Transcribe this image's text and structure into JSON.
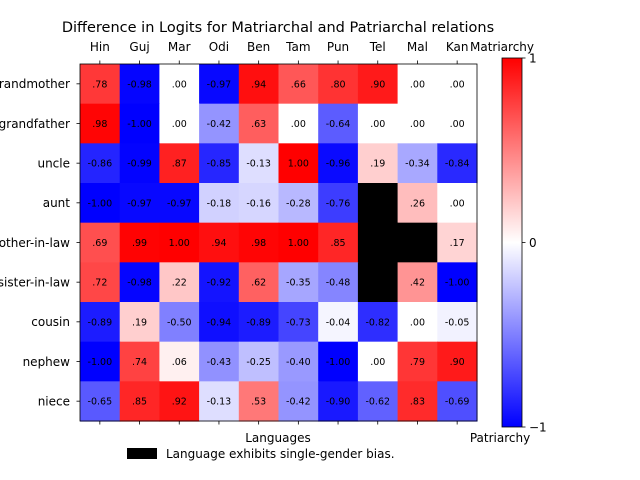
{
  "chart_data": {
    "type": "heatmap",
    "title": "Difference in Logits for Matriarchal and Patriarchal relations",
    "xlabel": "Languages",
    "ylabel": "",
    "columns": [
      "Hin",
      "Guj",
      "Mar",
      "Odi",
      "Ben",
      "Tam",
      "Pun",
      "Tel",
      "Mal",
      "Kan"
    ],
    "rows": [
      "grandmother",
      "grandfather",
      "uncle",
      "aunt",
      "mother-in-law",
      "sister-in-law",
      "cousin",
      "nephew",
      "niece"
    ],
    "values": [
      [
        0.78,
        -0.98,
        0.0,
        -0.97,
        0.94,
        0.66,
        0.8,
        0.9,
        0.0,
        0.0
      ],
      [
        0.98,
        -1.0,
        0.0,
        -0.42,
        0.63,
        0.0,
        -0.64,
        0.0,
        0.0,
        0.0
      ],
      [
        -0.86,
        -0.99,
        0.87,
        -0.85,
        -0.13,
        1.0,
        -0.96,
        0.19,
        -0.34,
        -0.84
      ],
      [
        -1.0,
        -0.97,
        -0.97,
        -0.18,
        -0.16,
        -0.28,
        -0.76,
        null,
        0.26,
        0.0
      ],
      [
        0.69,
        0.99,
        1.0,
        0.94,
        0.98,
        1.0,
        0.85,
        null,
        null,
        0.17
      ],
      [
        0.72,
        -0.98,
        0.22,
        -0.92,
        0.62,
        -0.35,
        -0.48,
        null,
        0.42,
        -1.0
      ],
      [
        -0.89,
        0.19,
        -0.5,
        -0.94,
        -0.89,
        -0.73,
        -0.04,
        -0.82,
        0.0,
        -0.05
      ],
      [
        -1.0,
        0.74,
        0.06,
        -0.43,
        -0.25,
        -0.4,
        -1.0,
        0.0,
        0.79,
        0.9
      ],
      [
        -0.65,
        0.85,
        0.92,
        -0.13,
        0.53,
        -0.42,
        -0.9,
        -0.62,
        0.83,
        -0.69
      ]
    ],
    "cell_labels": [
      [
        ".78",
        "-0.98",
        ".00",
        "-0.97",
        ".94",
        ".66",
        ".80",
        ".90",
        ".00",
        ".00"
      ],
      [
        ".98",
        "-1.00",
        ".00",
        "-0.42",
        ".63",
        ".00",
        "-0.64",
        ".00",
        ".00",
        ".00"
      ],
      [
        "-0.86",
        "-0.99",
        ".87",
        "-0.85",
        "-0.13",
        "1.00",
        "-0.96",
        ".19",
        "-0.34",
        "-0.84"
      ],
      [
        "-1.00",
        "-0.97",
        "-0.97",
        "-0.18",
        "-0.16",
        "-0.28",
        "-0.76",
        "",
        ".26",
        ".00"
      ],
      [
        ".69",
        ".99",
        "1.00",
        ".94",
        ".98",
        "1.00",
        ".85",
        "",
        "",
        ".17"
      ],
      [
        ".72",
        "-0.98",
        ".22",
        "-0.92",
        ".62",
        "-0.35",
        "-0.48",
        "",
        ".42",
        "-1.00"
      ],
      [
        "-0.89",
        ".19",
        "-0.50",
        "-0.94",
        "-0.89",
        "-0.73",
        "-0.04",
        "-0.82",
        ".00",
        "-0.05"
      ],
      [
        "-1.00",
        ".74",
        ".06",
        "-0.43",
        "-0.25",
        "-0.40",
        "-1.00",
        ".00",
        ".79",
        ".90"
      ],
      [
        "-0.65",
        ".85",
        ".92",
        "-0.13",
        ".53",
        "-0.42",
        "-0.90",
        "-0.62",
        ".83",
        "-0.69"
      ]
    ],
    "colormap": "bwr",
    "masked_color": "#000000",
    "color_range": [
      -1,
      1
    ],
    "colorbar": {
      "ticks": [
        1,
        0,
        -1
      ],
      "tick_labels": [
        "1",
        "0",
        "−1"
      ],
      "top_label": "Matriarchy",
      "bottom_label": "Patriarchy"
    },
    "legend": {
      "label": "Language exhibits single-gender bias.",
      "color": "#000000",
      "placement": "bottom-center"
    },
    "grid": false
  }
}
